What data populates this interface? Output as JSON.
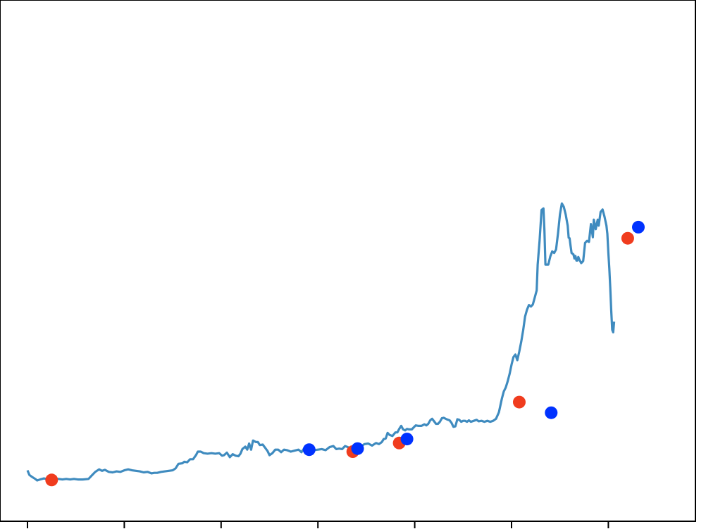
{
  "chart_data": {
    "type": "line",
    "title": "",
    "xlabel": "",
    "ylabel": "",
    "xlim": [
      0,
      650
    ],
    "ylim": [
      0,
      1000
    ],
    "grid": false,
    "legend": "none",
    "x_ticks": [
      0,
      100,
      200,
      300,
      400,
      500,
      600
    ],
    "colors": {
      "line": "#3f8bbf",
      "red_markers": "#f03c1e",
      "blue_markers": "#0032ff",
      "frame": "#000000"
    },
    "series": [
      {
        "values": [
          [
            0,
            84
          ],
          [
            2,
            75
          ],
          [
            4,
            72
          ],
          [
            8,
            67
          ],
          [
            10,
            64
          ],
          [
            13,
            66
          ],
          [
            17,
            68
          ],
          [
            22,
            66
          ],
          [
            27,
            67
          ],
          [
            32,
            67
          ],
          [
            36,
            66
          ],
          [
            40,
            67
          ],
          [
            44,
            66
          ],
          [
            48,
            67
          ],
          [
            52,
            66
          ],
          [
            57,
            66
          ],
          [
            63,
            67
          ],
          [
            66,
            73
          ],
          [
            70,
            81
          ],
          [
            74,
            86
          ],
          [
            77,
            83
          ],
          [
            80,
            85
          ],
          [
            84,
            81
          ],
          [
            88,
            80
          ],
          [
            92,
            82
          ],
          [
            96,
            81
          ],
          [
            100,
            84
          ],
          [
            104,
            86
          ],
          [
            108,
            84
          ],
          [
            112,
            83
          ],
          [
            116,
            82
          ],
          [
            120,
            80
          ],
          [
            124,
            81
          ],
          [
            128,
            78
          ],
          [
            131,
            79
          ],
          [
            134,
            79
          ],
          [
            138,
            81
          ],
          [
            142,
            82
          ],
          [
            146,
            83
          ],
          [
            150,
            84
          ],
          [
            153,
            88
          ],
          [
            156,
            97
          ],
          [
            160,
            98
          ],
          [
            162,
            101
          ],
          [
            165,
            100
          ],
          [
            168,
            106
          ],
          [
            171,
            106
          ],
          [
            174,
            114
          ],
          [
            176,
            121
          ],
          [
            179,
            121
          ],
          [
            182,
            118
          ],
          [
            186,
            117
          ],
          [
            190,
            118
          ],
          [
            194,
            117
          ],
          [
            198,
            118
          ],
          [
            201,
            113
          ],
          [
            203,
            114
          ],
          [
            206,
            119
          ],
          [
            209,
            110
          ],
          [
            212,
            116
          ],
          [
            215,
            113
          ],
          [
            218,
            112
          ],
          [
            220,
            117
          ],
          [
            222,
            126
          ],
          [
            225,
            131
          ],
          [
            227,
            125
          ],
          [
            229,
            137
          ],
          [
            231,
            125
          ],
          [
            233,
            143
          ],
          [
            236,
            140
          ],
          [
            238,
            140
          ],
          [
            240,
            134
          ],
          [
            243,
            135
          ],
          [
            245,
            130
          ],
          [
            248,
            122
          ],
          [
            250,
            114
          ],
          [
            253,
            118
          ],
          [
            256,
            125
          ],
          [
            259,
            125
          ],
          [
            262,
            120
          ],
          [
            265,
            125
          ],
          [
            268,
            124
          ],
          [
            272,
            121
          ],
          [
            276,
            123
          ],
          [
            280,
            125
          ],
          [
            283,
            120
          ],
          [
            286,
            128
          ],
          [
            289,
            124
          ],
          [
            292,
            125
          ],
          [
            296,
            124
          ],
          [
            300,
            125
          ],
          [
            304,
            126
          ],
          [
            308,
            124
          ],
          [
            312,
            130
          ],
          [
            316,
            132
          ],
          [
            319,
            126
          ],
          [
            322,
            127
          ],
          [
            325,
            126
          ],
          [
            328,
            132
          ],
          [
            331,
            130
          ],
          [
            334,
            121
          ],
          [
            337,
            124
          ],
          [
            340,
            129
          ],
          [
            342,
            128
          ],
          [
            345,
            132
          ],
          [
            348,
            136
          ],
          [
            352,
            137
          ],
          [
            356,
            133
          ],
          [
            360,
            138
          ],
          [
            363,
            136
          ],
          [
            366,
            140
          ],
          [
            368,
            146
          ],
          [
            370,
            147
          ],
          [
            372,
            158
          ],
          [
            374,
            154
          ],
          [
            377,
            152
          ],
          [
            380,
            159
          ],
          [
            382,
            159
          ],
          [
            384,
            166
          ],
          [
            386,
            172
          ],
          [
            388,
            165
          ],
          [
            390,
            163
          ],
          [
            392,
            166
          ],
          [
            394,
            165
          ],
          [
            397,
            165
          ],
          [
            399,
            169
          ],
          [
            401,
            173
          ],
          [
            404,
            172
          ],
          [
            407,
            172
          ],
          [
            410,
            175
          ],
          [
            412,
            173
          ],
          [
            414,
            176
          ],
          [
            416,
            183
          ],
          [
            418,
            186
          ],
          [
            420,
            181
          ],
          [
            422,
            176
          ],
          [
            424,
            176
          ],
          [
            426,
            180
          ],
          [
            428,
            187
          ],
          [
            430,
            188
          ],
          [
            433,
            185
          ],
          [
            436,
            183
          ],
          [
            438,
            178
          ],
          [
            440,
            170
          ],
          [
            442,
            171
          ],
          [
            444,
            185
          ],
          [
            446,
            184
          ],
          [
            448,
            180
          ],
          [
            450,
            182
          ],
          [
            452,
            182
          ],
          [
            454,
            180
          ],
          [
            456,
            183
          ],
          [
            458,
            180
          ],
          [
            461,
            182
          ],
          [
            464,
            184
          ],
          [
            466,
            181
          ],
          [
            469,
            182
          ],
          [
            472,
            180
          ],
          [
            475,
            182
          ],
          [
            478,
            180
          ],
          [
            481,
            182
          ],
          [
            484,
            186
          ],
          [
            487,
            199
          ],
          [
            490,
            226
          ],
          [
            492,
            240
          ],
          [
            494,
            248
          ],
          [
            496,
            260
          ],
          [
            498,
            275
          ],
          [
            500,
            293
          ],
          [
            502,
            308
          ],
          [
            504,
            313
          ],
          [
            506,
            302
          ],
          [
            508,
            319
          ],
          [
            510,
            338
          ],
          [
            512,
            361
          ],
          [
            514,
            388
          ],
          [
            516,
            402
          ],
          [
            518,
            411
          ],
          [
            520,
            408
          ],
          [
            522,
            412
          ],
          [
            524,
            426
          ],
          [
            526,
            440
          ],
          [
            527,
            491
          ],
          [
            529,
            538
          ],
          [
            531,
            599
          ],
          [
            533,
            602
          ],
          [
            534,
            558
          ],
          [
            535,
            491
          ],
          [
            536,
            491
          ],
          [
            538,
            491
          ],
          [
            540,
            507
          ],
          [
            542,
            517
          ],
          [
            544,
            514
          ],
          [
            546,
            521
          ],
          [
            548,
            553
          ],
          [
            550,
            590
          ],
          [
            552,
            612
          ],
          [
            554,
            605
          ],
          [
            556,
            590
          ],
          [
            558,
            568
          ],
          [
            559,
            544
          ],
          [
            560,
            543
          ],
          [
            561,
            528
          ],
          [
            562,
            514
          ],
          [
            564,
            511
          ],
          [
            565,
            503
          ],
          [
            566,
            508
          ],
          [
            567,
            499
          ],
          [
            568,
            499
          ],
          [
            569,
            506
          ],
          [
            570,
            501
          ],
          [
            572,
            494
          ],
          [
            574,
            498
          ],
          [
            576,
            534
          ],
          [
            578,
            538
          ],
          [
            580,
            536
          ],
          [
            582,
            571
          ],
          [
            584,
            545
          ],
          [
            585,
            580
          ],
          [
            587,
            561
          ],
          [
            589,
            580
          ],
          [
            590,
            568
          ],
          [
            592,
            595
          ],
          [
            594,
            600
          ],
          [
            596,
            586
          ],
          [
            598,
            568
          ],
          [
            599,
            552
          ],
          [
            600,
            515
          ],
          [
            601,
            483
          ],
          [
            602,
            446
          ],
          [
            603,
            400
          ],
          [
            604,
            362
          ],
          [
            605,
            357
          ],
          [
            606,
            378
          ]
        ]
      }
    ],
    "red_points": [
      [
        25,
        65
      ],
      [
        336,
        121
      ],
      [
        384,
        138
      ],
      [
        508,
        219
      ],
      [
        620,
        543
      ]
    ],
    "blue_points": [
      [
        291,
        125
      ],
      [
        341,
        127
      ],
      [
        392,
        146
      ],
      [
        541,
        198
      ],
      [
        631,
        565
      ]
    ]
  }
}
